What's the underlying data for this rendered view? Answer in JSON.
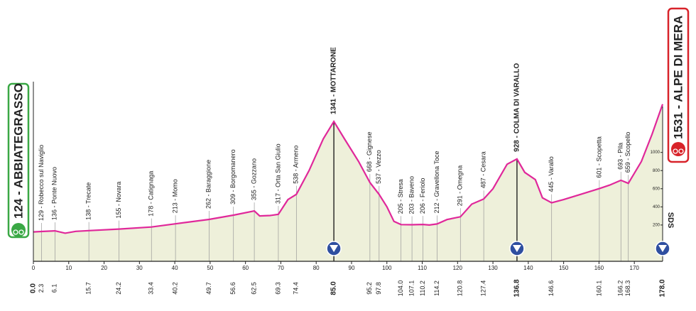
{
  "chart_data": {
    "type": "area",
    "line_color": "#e0289a",
    "fill_color": "#eef0da",
    "x": [
      0,
      2.3,
      6.1,
      9,
      12,
      15.7,
      24.2,
      33.4,
      40.2,
      49.7,
      56.6,
      62.5,
      64,
      67,
      69.3,
      72,
      74.4,
      78,
      82,
      85,
      88,
      92,
      95.2,
      97.8,
      100,
      102,
      104,
      107.1,
      110.2,
      112,
      114.2,
      117,
      120.8,
      124,
      127.4,
      130,
      134,
      136.8,
      139,
      142,
      144,
      146.6,
      150,
      155,
      160.1,
      163,
      166.2,
      168.3,
      172,
      175,
      178
    ],
    "values": [
      124,
      129,
      136,
      110,
      130,
      138,
      155,
      178,
      213,
      262,
      309,
      355,
      300,
      305,
      317,
      480,
      538,
      800,
      1150,
      1341,
      1150,
      900,
      668,
      537,
      400,
      240,
      205,
      203,
      206,
      200,
      212,
      260,
      291,
      430,
      487,
      600,
      870,
      928,
      780,
      700,
      500,
      445,
      480,
      540,
      601,
      640,
      693,
      659,
      900,
      1200,
      1531
    ],
    "xlim": [
      0,
      178
    ],
    "ylim": [
      -200,
      1600
    ],
    "xticks": [
      0,
      10,
      20,
      30,
      40,
      50,
      60,
      70,
      80,
      90,
      100,
      110,
      120,
      130,
      140,
      150,
      160,
      170
    ],
    "yticks": [
      200,
      400,
      600,
      800,
      1000
    ],
    "y_axis_label": "SDS",
    "waypoints": [
      {
        "km": {
          "value": 0,
          "label": "0.0"
        },
        "altitude": 124,
        "label": "124 - ABBIATEGRASSO",
        "style": "start"
      },
      {
        "km": 2.3,
        "altitude": 129,
        "label": "129 - Robecco sul Naviglio",
        "style": "point"
      },
      {
        "km": 6.1,
        "altitude": 136,
        "label": "136 - Ponte Nuovo",
        "style": "point"
      },
      {
        "km": 15.7,
        "altitude": 138,
        "label": "138 - Trecate",
        "style": "point"
      },
      {
        "km": 24.2,
        "altitude": 155,
        "label": "155 - Novara",
        "style": "point"
      },
      {
        "km": 33.4,
        "altitude": 178,
        "label": "178 - Catignaga",
        "style": "point"
      },
      {
        "km": 40.2,
        "altitude": 213,
        "label": "213 - Momo",
        "style": "point"
      },
      {
        "km": 49.7,
        "altitude": 262,
        "label": "262 - Baraggione",
        "style": "point"
      },
      {
        "km": 56.6,
        "altitude": 309,
        "label": "309 - Borgomanero",
        "style": "point"
      },
      {
        "km": 62.5,
        "altitude": 355,
        "label": "355 - Gozzano",
        "style": "point"
      },
      {
        "km": 69.3,
        "altitude": 317,
        "label": "317 - Orta San Giulio",
        "style": "point"
      },
      {
        "km": 74.4,
        "altitude": 538,
        "label": "538 - Armeno",
        "style": "point"
      },
      {
        "km": {
          "value": 85,
          "label": "85.0"
        },
        "altitude": 1341,
        "label": "1341 - MOTTARONE",
        "style": "summit"
      },
      {
        "km": 95.2,
        "altitude": 668,
        "label": "668 - Gignese",
        "style": "point"
      },
      {
        "km": 97.8,
        "altitude": 537,
        "label": "537 - Vezzo",
        "style": "point"
      },
      {
        "km": {
          "value": 104,
          "label": "104.0"
        },
        "altitude": 205,
        "label": "205 - Stresa",
        "style": "point"
      },
      {
        "km": 107.1,
        "altitude": 203,
        "label": "203 - Baveno",
        "style": "point"
      },
      {
        "km": 110.2,
        "altitude": 206,
        "label": "206 - Feriolo",
        "style": "point"
      },
      {
        "km": 114.2,
        "altitude": 212,
        "label": "212 - Gravellona Toce",
        "style": "point"
      },
      {
        "km": 120.8,
        "altitude": 291,
        "label": "291 - Omegna",
        "style": "point"
      },
      {
        "km": 127.4,
        "altitude": 487,
        "label": "487 - Cesara",
        "style": "point"
      },
      {
        "km": 136.8,
        "altitude": 928,
        "label": "928 - COLMA DI VARALLO",
        "style": "summit"
      },
      {
        "km": 146.6,
        "altitude": 445,
        "label": "445 - Varallo",
        "style": "point"
      },
      {
        "km": 160.1,
        "altitude": 601,
        "label": "601 - Scopetta",
        "style": "point"
      },
      {
        "km": 166.2,
        "altitude": 693,
        "label": "693 - Pila",
        "style": "point"
      },
      {
        "km": 168.3,
        "altitude": 659,
        "label": "659 - Scopello",
        "style": "point"
      },
      {
        "km": {
          "value": 178,
          "label": "178.0"
        },
        "altitude": 1531,
        "label": "1531 - ALPE DI MERA",
        "style": "finish"
      }
    ]
  }
}
